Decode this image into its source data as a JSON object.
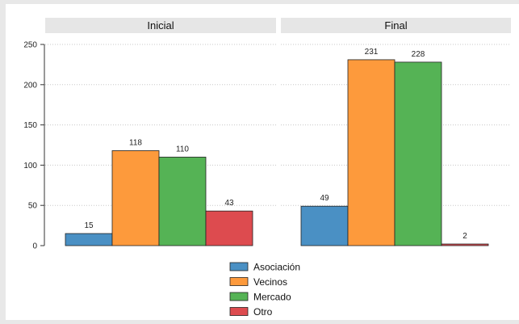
{
  "chart_data": {
    "type": "bar",
    "panels": [
      {
        "title": "Inicial",
        "values": [
          15,
          118,
          110,
          43
        ]
      },
      {
        "title": "Final",
        "values": [
          49,
          231,
          228,
          2
        ]
      }
    ],
    "series": [
      {
        "name": "Asociación",
        "color": "#4a90c4"
      },
      {
        "name": "Vecinos",
        "color": "#fd9a3c"
      },
      {
        "name": "Mercado",
        "color": "#55b355"
      },
      {
        "name": "Otro",
        "color": "#dd4b4f"
      }
    ],
    "ylim": [
      0,
      250
    ],
    "yticks": [
      0,
      50,
      100,
      150,
      200,
      250
    ],
    "grid": true,
    "legend_position": "bottom",
    "data_labels": true,
    "panel_strip_color": "#e6e6e6"
  }
}
